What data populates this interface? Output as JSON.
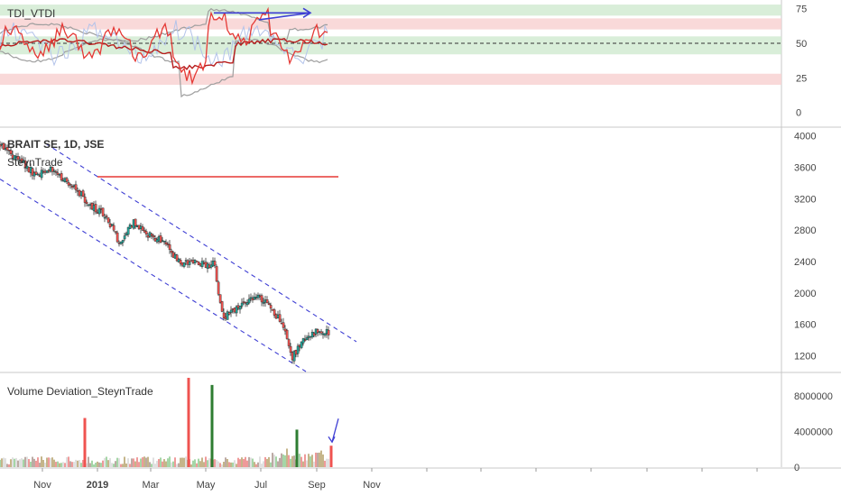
{
  "chart_data": [
    {
      "type": "line",
      "panel": "indicator",
      "title": "TDI_VTDI",
      "ylim": [
        -10,
        80
      ],
      "y_ticks": [
        "75",
        "50",
        "25",
        "0"
      ],
      "y_tick_values": [
        75,
        50,
        25,
        0
      ],
      "levels": {
        "upper": 75,
        "middle": 50,
        "lower": 25
      },
      "bands": [
        {
          "from": 70,
          "to": 78,
          "color": "#cfead0"
        },
        {
          "from": 60,
          "to": 68,
          "color": "#f7cfcf"
        },
        {
          "from": 42,
          "to": 55,
          "color": "#cfead0"
        },
        {
          "from": 20,
          "to": 28,
          "color": "#f7cfcf"
        }
      ],
      "annotation": "blue arrow rising from ~67 (mid-May) to ~72 (late Aug)",
      "colors": {
        "price_line": "#e53935",
        "signal_line": "#b71c1c",
        "band": "#9e9e9e",
        "vol_line": "#b3c3ea",
        "arrow": "#3f3fd4"
      }
    },
    {
      "type": "candlestick",
      "panel": "price",
      "title": "BRAIT SE, 1D, JSE",
      "subtitle": "SteynTrade",
      "ylim": [
        1000,
        4100
      ],
      "y_ticks": [
        "4000",
        "3600",
        "3200",
        "2800",
        "2400",
        "2000",
        "1600",
        "1200"
      ],
      "y_tick_values": [
        4000,
        3600,
        3200,
        2800,
        2400,
        2000,
        1600,
        1200
      ],
      "x_ticks": [
        "Nov",
        "2019",
        "Mar",
        "May",
        "Jul",
        "Sep",
        "Nov"
      ],
      "trend_start": "2018-09-15",
      "x": [
        "2018-09-15",
        "2018-10-05",
        "2018-10-25",
        "2018-11-10",
        "2018-11-25",
        "2018-12-10",
        "2018-12-25",
        "2019-01-10",
        "2019-01-25",
        "2019-02-10",
        "2019-02-25",
        "2019-03-15",
        "2019-04-01",
        "2019-04-20",
        "2019-05-05",
        "2019-05-10",
        "2019-05-20",
        "2019-06-10",
        "2019-06-25",
        "2019-07-10",
        "2019-07-25",
        "2019-08-05",
        "2019-08-20",
        "2019-09-01",
        "2019-09-15"
      ],
      "close": [
        3880,
        3700,
        3500,
        3600,
        3450,
        3300,
        3100,
        3000,
        2650,
        2900,
        2750,
        2650,
        2400,
        2380,
        2350,
        2380,
        1680,
        1850,
        1950,
        1850,
        1600,
        1180,
        1450,
        1500,
        1500
      ],
      "channel": {
        "upper": {
          "start_date": "2018-11-05",
          "start": 3900,
          "end_date": "2019-10-15",
          "end": 1380
        },
        "lower": {
          "start_date": "2018-09-15",
          "start": 3450,
          "end_date": "2019-08-20",
          "end": 1000
        }
      },
      "resistance": {
        "value": 3480,
        "from": "2019-01-01",
        "to": "2019-09-25"
      },
      "colors": {
        "up": "#26a69a",
        "down": "#ef5350",
        "channel": "#3f3fd4",
        "resistance": "#e53935"
      }
    },
    {
      "type": "bar",
      "panel": "volume",
      "title": "Volume Deviation_SteynTrade",
      "ylim": [
        0,
        10500000
      ],
      "y_ticks": [
        "8000000",
        "4000000",
        "0"
      ],
      "y_tick_values": [
        8000000,
        4000000,
        0
      ],
      "spikes": [
        {
          "date": "2018-12-18",
          "value": 5500000,
          "color": "#ef5350"
        },
        {
          "date": "2019-04-12",
          "value": 10000000,
          "color": "#ef5350"
        },
        {
          "date": "2019-05-08",
          "value": 9200000,
          "color": "#2e7d32"
        },
        {
          "date": "2019-08-10",
          "value": 4200000,
          "color": "#2e7d32"
        },
        {
          "date": "2019-09-17",
          "value": 2400000,
          "color": "#ef5350"
        }
      ],
      "annotation": "blue arrow pointing at last volume spike"
    }
  ]
}
